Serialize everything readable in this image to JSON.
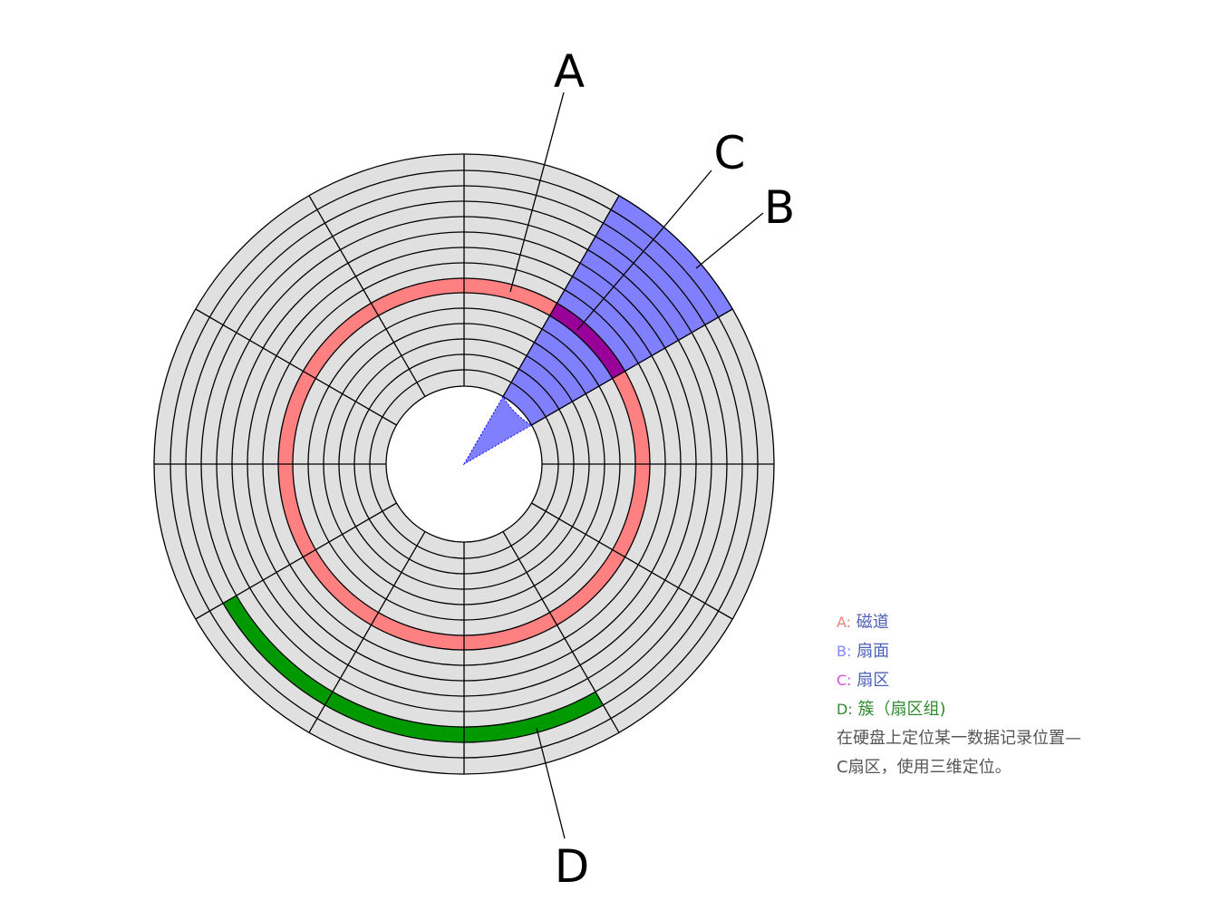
{
  "labels": {
    "a": "A",
    "b": "B",
    "c": "C",
    "d": "D"
  },
  "legend": [
    {
      "key": "A:",
      "text": "磁道",
      "key_color": "#f08080",
      "text_color": "#4a5fb5"
    },
    {
      "key": "B:",
      "text": "扇面",
      "key_color": "#7f86ff",
      "text_color": "#4a5fb5"
    },
    {
      "key": "C:",
      "text": "扇区",
      "key_color": "#d94fd9",
      "text_color": "#4a5fb5"
    },
    {
      "key": "D:",
      "text": "簇（扇区组)",
      "key_color": "#2e8b2e",
      "text_color": "#2e8b2e"
    }
  ],
  "note_line1": "在硬盘上定位某一数据记录位置—",
  "note_line2": "C扇区，使用三维定位。",
  "colors": {
    "platter": "#e0e0e0",
    "track_highlight": "#ff8080",
    "sector_face": "#8080ff",
    "sector": "#990099",
    "cluster": "#009900",
    "note_text": "#555555"
  }
}
